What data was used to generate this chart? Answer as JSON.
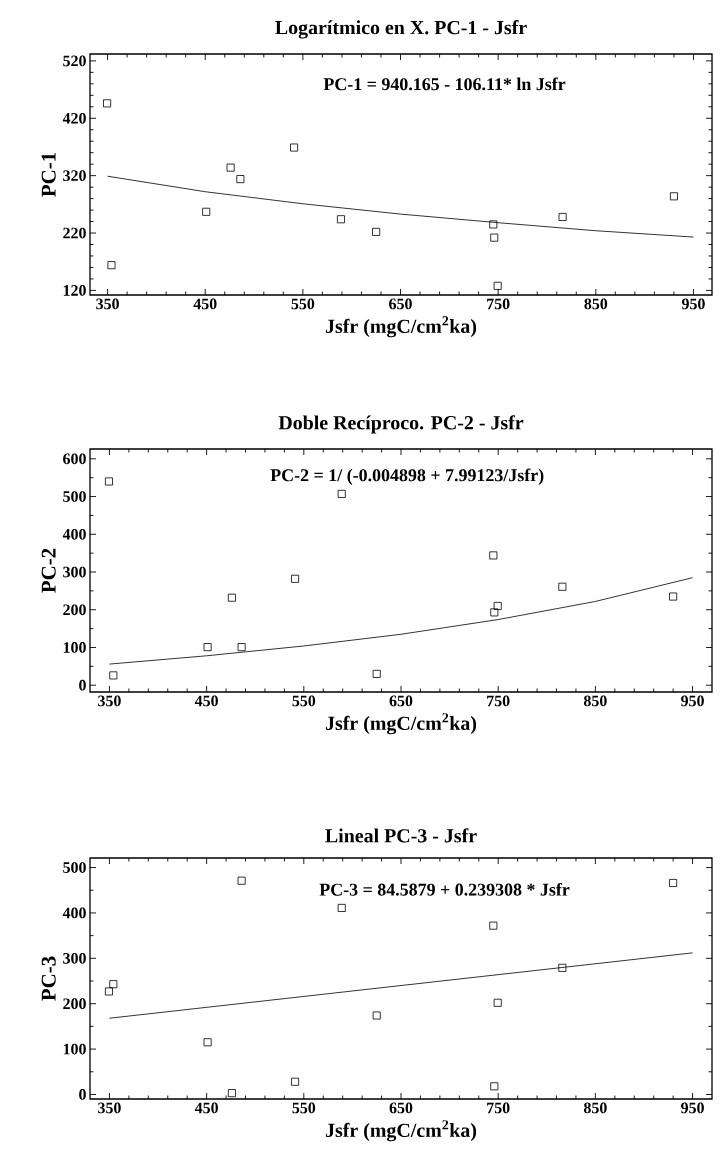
{
  "chart_data": [
    {
      "type": "scatter",
      "title": "Logarítmico en X. PC-1 - Jsfr",
      "xlabel": "Jsfr (mgC/cm$^{2}$ka)",
      "ylabel": "PC-1",
      "annotations": [
        "PC-1 = 940.165 - 106.11* ln Jsfr"
      ],
      "x": [
        349.5,
        354,
        451,
        476,
        486,
        541,
        589,
        625,
        745,
        746,
        749.5,
        816,
        930
      ],
      "series": [
        {
          "color": "#000000",
          "marker": "square",
          "values": [
            446,
            164,
            257,
            334,
            314,
            369,
            244,
            222,
            235,
            212,
            128,
            248,
            284
          ]
        },
        {
          "type": "line",
          "color": "#000000",
          "marker": "none",
          "x": [
            350,
            450,
            550,
            650,
            750,
            850,
            950
          ],
          "values": [
            319,
            292,
            271,
            253,
            238,
            224,
            213
          ]
        }
      ],
      "xlim": [
        332,
        969
      ],
      "ylim": [
        112,
        532
      ],
      "xticks": [
        350,
        450,
        550,
        650,
        750,
        850,
        950
      ],
      "yticks": [
        120,
        220,
        320,
        420,
        520
      ]
    },
    {
      "type": "scatter",
      "title": "Doble Recíproco. PC-2 - Jsfr",
      "xlabel": "Jsfr (mgC/cm$^{2}$ka)",
      "ylabel": "PC-2",
      "annotations": [
        "PC-2 = 1/ (-0.004898 + 7.99123/Jsfr)"
      ],
      "x": [
        349.5,
        354,
        451,
        476,
        486,
        541,
        589,
        625,
        745,
        746,
        749.5,
        816,
        930
      ],
      "series": [
        {
          "color": "#000000",
          "marker": "square",
          "values": [
            540,
            26,
            101,
            232,
            101,
            282,
            507,
            30,
            344,
            193,
            210,
            261,
            235
          ]
        },
        {
          "type": "line",
          "color": "#000000",
          "marker": "none",
          "x": [
            350,
            450,
            550,
            650,
            750,
            850,
            950
          ],
          "values": [
            56,
            78,
            104,
            135,
            174,
            222,
            285
          ]
        }
      ],
      "xlim": [
        330,
        970
      ],
      "ylim": [
        -18,
        626
      ],
      "xticks": [
        350,
        450,
        550,
        650,
        750,
        850,
        950
      ],
      "yticks": [
        0,
        100,
        200,
        300,
        400,
        500,
        600
      ]
    },
    {
      "type": "scatter",
      "title": "Lineal PC-3 - Jsfr",
      "xlabel": "Jsfr (mgC/cm$^{2}$ka)",
      "ylabel": "PC-3",
      "annotations": [
        "PC-3 = 84.5879 + 0.239308 * Jsfr"
      ],
      "x": [
        349.5,
        354,
        451,
        476,
        486,
        541,
        589,
        625,
        745,
        746,
        749.5,
        816,
        930
      ],
      "series": [
        {
          "color": "#000000",
          "marker": "square",
          "values": [
            227,
            243,
            115,
            3,
            471,
            28,
            411,
            174,
            372,
            18,
            202,
            279,
            466
          ]
        },
        {
          "type": "line",
          "color": "#000000",
          "marker": "none",
          "x": [
            350,
            950
          ],
          "values": [
            168,
            312
          ]
        }
      ],
      "xlim": [
        330,
        970
      ],
      "ylim": [
        -10,
        521
      ],
      "xticks": [
        350,
        450,
        550,
        650,
        750,
        850,
        950
      ],
      "yticks": [
        0,
        100,
        200,
        300,
        400,
        500
      ]
    }
  ]
}
